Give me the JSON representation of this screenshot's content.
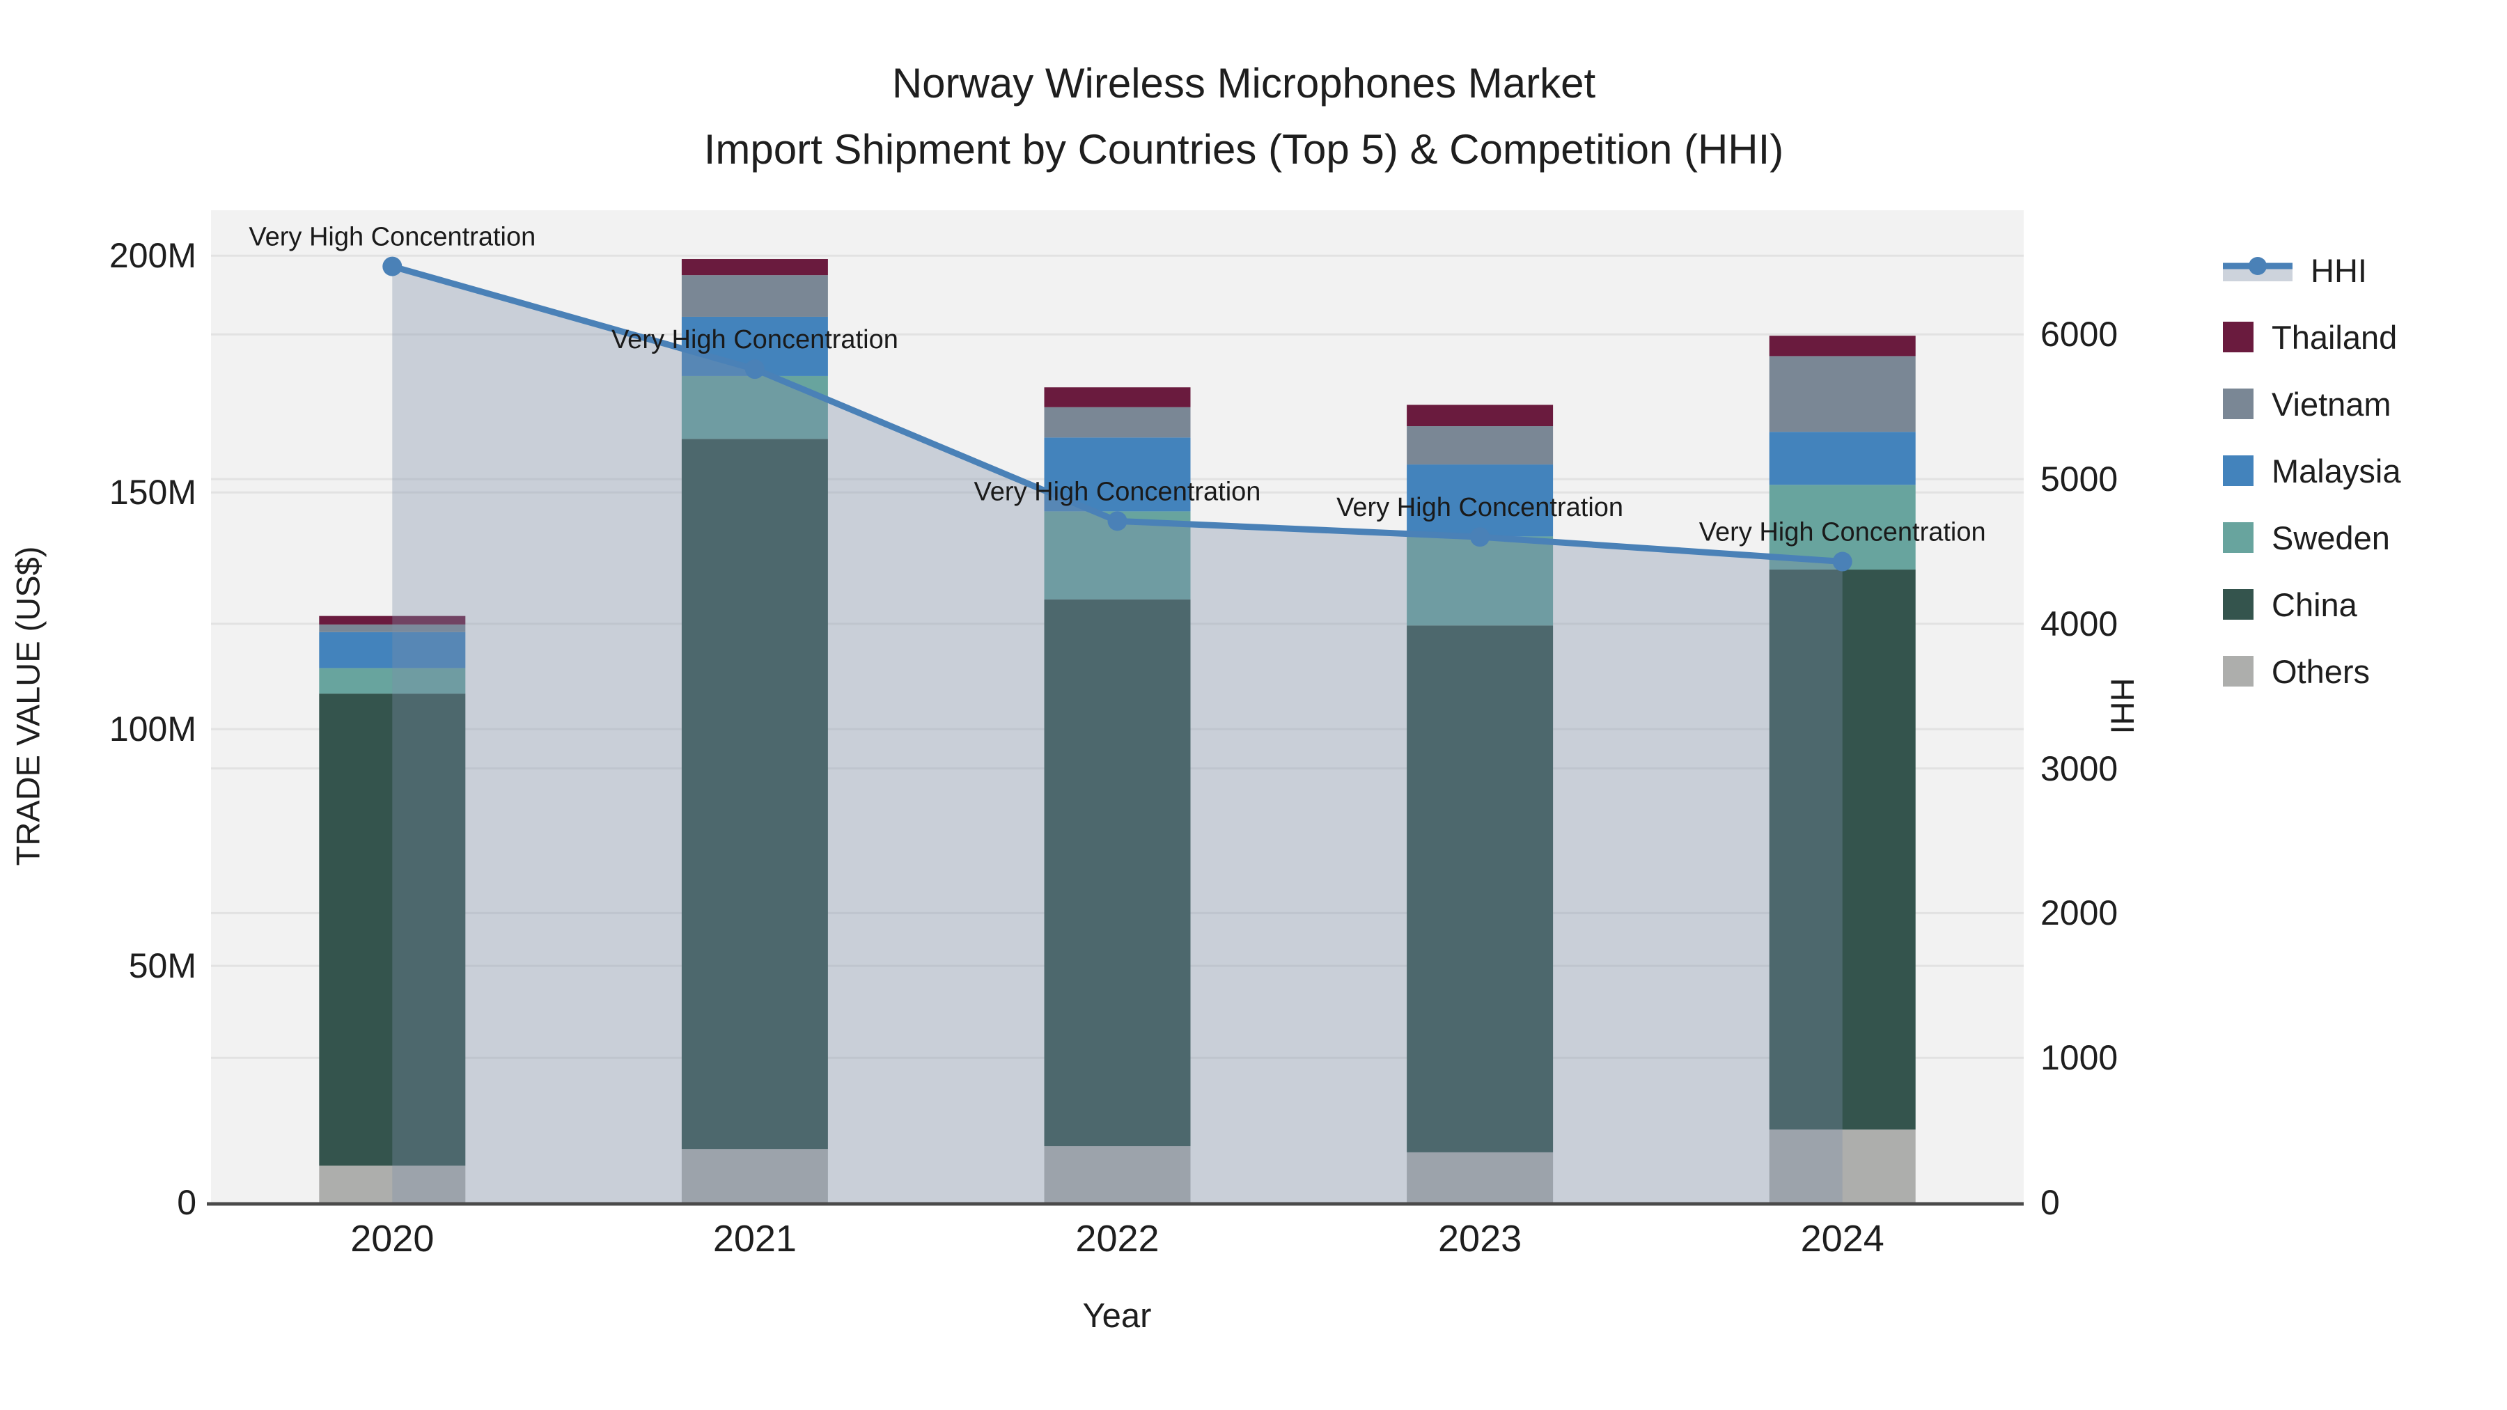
{
  "title": {
    "line1": "Norway Wireless Microphones Market",
    "line2": "Import Shipment by Countries (Top 5) & Competition (HHI)"
  },
  "axes": {
    "x": {
      "title": "Year",
      "categories": [
        "2020",
        "2021",
        "2022",
        "2023",
        "2024"
      ]
    },
    "y_left": {
      "title": "TRADE VALUE (US$)",
      "tick_labels": [
        "0",
        "50M",
        "100M",
        "150M",
        "200M"
      ],
      "tick_values": [
        0,
        50,
        100,
        150,
        200
      ],
      "range_M": [
        0,
        209.6
      ],
      "grid": true
    },
    "y_right": {
      "title": "HHI",
      "tick_labels": [
        "0",
        "1000",
        "2000",
        "3000",
        "4000",
        "5000",
        "6000"
      ],
      "tick_values": [
        0,
        1000,
        2000,
        3000,
        4000,
        5000,
        6000
      ],
      "range": [
        0,
        6858
      ],
      "grid": true
    }
  },
  "legend": {
    "position": "right",
    "items": [
      {
        "label": "HHI",
        "marker": "line",
        "color": "#4A81B7",
        "band_color": "#CDD3DC"
      },
      {
        "label": "Thailand",
        "marker": "square",
        "color": "#6A1B3E"
      },
      {
        "label": "Vietnam",
        "marker": "square",
        "color": "#7A8795"
      },
      {
        "label": "Malaysia",
        "marker": "square",
        "color": "#4383BC"
      },
      {
        "label": "Sweden",
        "marker": "square",
        "color": "#68A49E"
      },
      {
        "label": "China",
        "marker": "square",
        "color": "#34544D"
      },
      {
        "label": "Others",
        "marker": "square",
        "color": "#ADAEAC"
      }
    ]
  },
  "chart_data": [
    {
      "type": "bar",
      "stacked": true,
      "axis": "left",
      "unit": "M US$ (estimated from axis)",
      "categories": [
        "2020",
        "2021",
        "2022",
        "2023",
        "2024"
      ],
      "series": [
        {
          "name": "Others",
          "color": "#ADAEAC",
          "values": [
            7.8,
            11.3,
            11.9,
            10.6,
            15.4
          ]
        },
        {
          "name": "China",
          "color": "#34544D",
          "values": [
            99.7,
            150.0,
            115.5,
            111.3,
            118.3
          ]
        },
        {
          "name": "Sweden",
          "color": "#68A49E",
          "values": [
            5.4,
            13.3,
            18.6,
            18.8,
            17.9
          ]
        },
        {
          "name": "Malaysia",
          "color": "#4383BC",
          "values": [
            7.6,
            12.5,
            15.6,
            15.2,
            11.2
          ]
        },
        {
          "name": "Vietnam",
          "color": "#7A8795",
          "values": [
            1.6,
            8.8,
            6.4,
            8.1,
            16.0
          ]
        },
        {
          "name": "Thailand",
          "color": "#6A1B3E",
          "values": [
            1.8,
            3.4,
            4.2,
            4.5,
            4.3
          ]
        }
      ],
      "totals": [
        123.9,
        199.3,
        172.2,
        168.5,
        183.1
      ],
      "ylabel": "TRADE VALUE (US$)",
      "ylim_M": [
        0,
        209.6
      ],
      "grid": true
    },
    {
      "type": "line",
      "name": "HHI",
      "axis": "right",
      "categories": [
        "2020",
        "2021",
        "2022",
        "2023",
        "2024"
      ],
      "values": [
        6470,
        5760,
        4710,
        4600,
        4430
      ],
      "color": "#4A81B7",
      "marker": "circle",
      "area_fill": true,
      "fill_color": "rgba(125,142,168,0.35)",
      "ylabel": "HHI",
      "ylim": [
        0,
        6858
      ],
      "point_annotations": [
        "Very High Concentration",
        "Very High Concentration",
        "Very High Concentration",
        "Very High Concentration",
        "Very High Concentration"
      ]
    }
  ],
  "style": {
    "plot_bg": "#F2F2F2",
    "grid_color": "#E2E2E2",
    "axis_line_color": "#4A4A4A",
    "annotation_color": "#1a1a1a"
  }
}
